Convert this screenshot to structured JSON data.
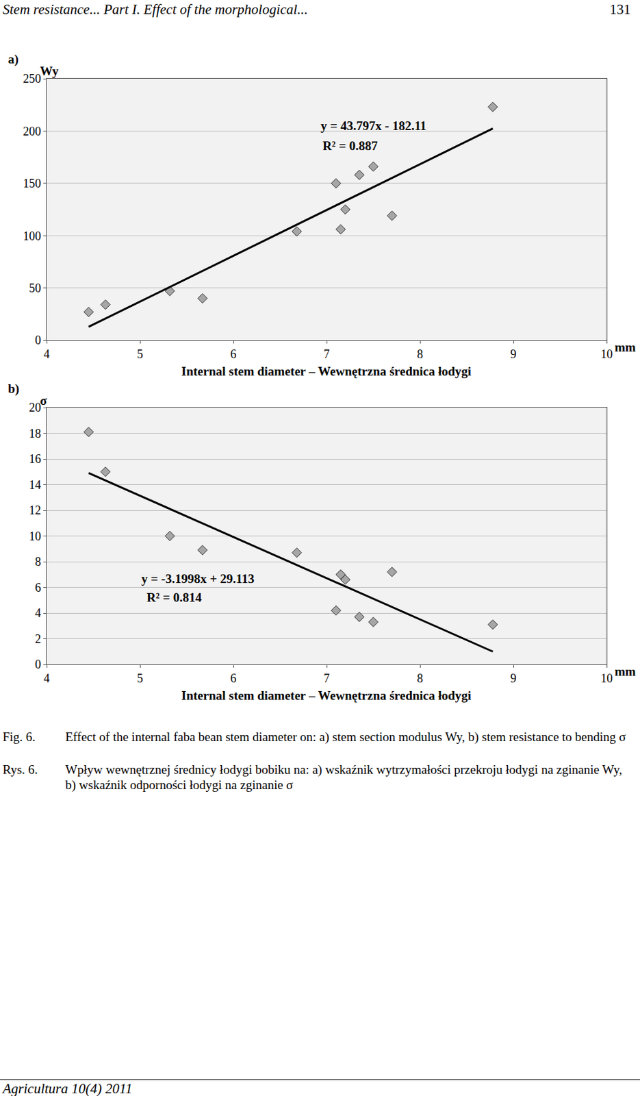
{
  "page": {
    "header": "Stem resistance... Part I. Effect of the morphological...",
    "page_number": "131",
    "captions": [
      {
        "label": "Fig. 6.",
        "text": "Effect of the internal faba bean stem diameter on: a)  stem section modulus Wy, b) stem resistance to bending σ"
      },
      {
        "label": "Rys. 6.",
        "text": "Wpływ wewnętrznej średnicy łodygi bobiku na: a) wskaźnik wytrzymałości przekroju łodygi na zginanie Wy, b) wskaźnik odporności łodygi na zginanie σ"
      }
    ],
    "footer": "Agricultura 10(4) 2011"
  },
  "chart_data": [
    {
      "type": "scatter",
      "panel_label": "a)",
      "y_label": "Wy",
      "x_label": "Internal stem diameter – Wewnętrzna średnica łodygi",
      "x_unit": "mm",
      "xlim": [
        4,
        10
      ],
      "xticks": [
        4,
        5,
        6,
        7,
        8,
        9,
        10
      ],
      "ylim": [
        0,
        250
      ],
      "yticks": [
        0,
        50,
        100,
        150,
        200,
        250
      ],
      "grid": true,
      "series": [
        {
          "type": "scatter",
          "marker": "diamond",
          "color": "#a6a6a6",
          "x": [
            4.45,
            4.63,
            5.32,
            5.67,
            6.68,
            7.1,
            7.15,
            7.2,
            7.35,
            7.5,
            7.7,
            8.78
          ],
          "values": [
            27,
            34,
            47,
            40,
            104,
            150,
            106,
            125,
            158,
            166,
            119,
            223
          ]
        },
        {
          "type": "line",
          "line_style": "solid",
          "color": "#000000",
          "x": [
            4.45,
            8.78
          ],
          "values": [
            12.8,
            202.4
          ]
        }
      ],
      "annotations": [
        "y = 43.797x - 182.11",
        "R² = 0.887"
      ]
    },
    {
      "type": "scatter",
      "panel_label": "b)",
      "y_label": "σ",
      "x_label": "Internal stem diameter – Wewnętrzna średnica łodygi",
      "x_unit": "mm",
      "xlim": [
        4,
        10
      ],
      "xticks": [
        4,
        5,
        6,
        7,
        8,
        9,
        10
      ],
      "ylim": [
        0,
        20
      ],
      "yticks": [
        0,
        2,
        4,
        6,
        8,
        10,
        12,
        14,
        16,
        18,
        20
      ],
      "grid": true,
      "series": [
        {
          "type": "scatter",
          "marker": "diamond",
          "color": "#a6a6a6",
          "x": [
            4.45,
            4.63,
            5.32,
            5.67,
            6.68,
            7.1,
            7.15,
            7.2,
            7.35,
            7.5,
            7.7,
            8.78
          ],
          "values": [
            18.1,
            15.0,
            10.0,
            8.9,
            8.7,
            4.2,
            7.0,
            6.6,
            3.7,
            3.3,
            7.2,
            3.1
          ]
        },
        {
          "type": "line",
          "line_style": "solid",
          "color": "#000000",
          "x": [
            4.45,
            8.78
          ],
          "values": [
            14.9,
            1.0
          ]
        }
      ],
      "annotations": [
        "y = -3.1998x + 29.113",
        "R² = 0.814"
      ]
    }
  ]
}
